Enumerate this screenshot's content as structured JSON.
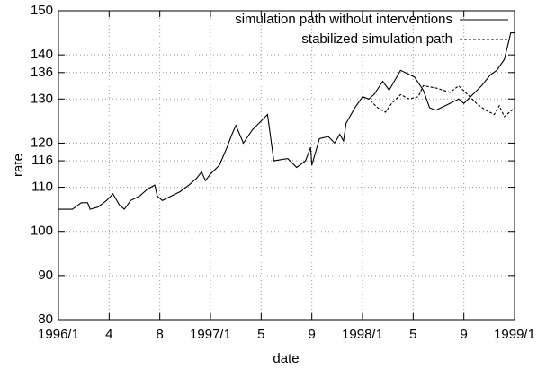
{
  "chart_data": {
    "type": "line",
    "xlabel": "date",
    "ylabel": "rate",
    "xlim": [
      0,
      36
    ],
    "xticks": [
      {
        "value": 0,
        "label": "1996/1"
      },
      4,
      8,
      {
        "value": 12,
        "label": "1997/1"
      },
      {
        "value": 16,
        "label": "5"
      },
      {
        "value": 20,
        "label": "9"
      },
      {
        "value": 24,
        "label": "1998/1"
      },
      {
        "value": 28,
        "label": "5"
      },
      {
        "value": 32,
        "label": "9"
      },
      {
        "value": 36,
        "label": "1999/1"
      }
    ],
    "ylim": [
      80,
      150
    ],
    "yticks": [
      80,
      90,
      100,
      110,
      116,
      120,
      130,
      136,
      140,
      150
    ],
    "grid": true,
    "legend": "top-right",
    "series": [
      {
        "name": "simulation path without interventions",
        "color": "#000000",
        "dash": "solid",
        "x": [
          0,
          1.1,
          1.8,
          2.3,
          2.5,
          3.1,
          3.8,
          4.3,
          4.8,
          5.2,
          5.7,
          6.4,
          7.0,
          7.6,
          7.8,
          8.2,
          8.9,
          9.6,
          10.3,
          10.9,
          11.3,
          11.6,
          12,
          12.7,
          13.3,
          13.7,
          14.0,
          14.6,
          15.3,
          16.0,
          16.5,
          17.0,
          18.1,
          18.8,
          19.5,
          19.9,
          20.0,
          20.6,
          21.3,
          21.8,
          22.2,
          22.5,
          22.7,
          23.4,
          24.0,
          24.5,
          24.9,
          25.6,
          26.1,
          27.0,
          28.1,
          28.8,
          29.3,
          29.8,
          30.9,
          31.6,
          32.0,
          32.7,
          33.4,
          34.1,
          34.6,
          35.2,
          35.7,
          36
        ],
        "values": [
          105,
          105,
          106.5,
          106.5,
          105,
          105.5,
          107,
          108.5,
          106,
          105,
          107,
          108,
          109.5,
          110.5,
          108,
          107,
          108,
          109,
          110.5,
          112,
          113.5,
          111.5,
          113,
          115,
          119,
          122,
          124,
          120,
          123,
          125,
          126.5,
          116,
          116.5,
          114.5,
          116,
          119,
          115,
          121,
          121.5,
          120,
          122,
          120.5,
          124.5,
          128,
          130.5,
          130,
          131,
          134,
          132,
          136.5,
          135,
          132,
          128,
          127.5,
          129,
          130,
          129,
          131,
          133,
          135.5,
          136.5,
          139,
          145,
          145
        ]
      },
      {
        "name": "stabilized simulation path",
        "color": "#000000",
        "dash": "dashed",
        "x": [
          24.0,
          24.5,
          25.2,
          25.8,
          26.3,
          27.0,
          27.7,
          28.4,
          28.8,
          29.8,
          30.9,
          31.6,
          32.3,
          33.0,
          33.7,
          34.4,
          34.8,
          35.2,
          36
        ],
        "values": [
          130.5,
          130,
          128,
          127,
          129,
          131,
          130,
          130.5,
          133,
          132.5,
          131.5,
          133,
          131,
          129,
          127.5,
          126.5,
          128.5,
          126,
          128
        ]
      }
    ]
  }
}
